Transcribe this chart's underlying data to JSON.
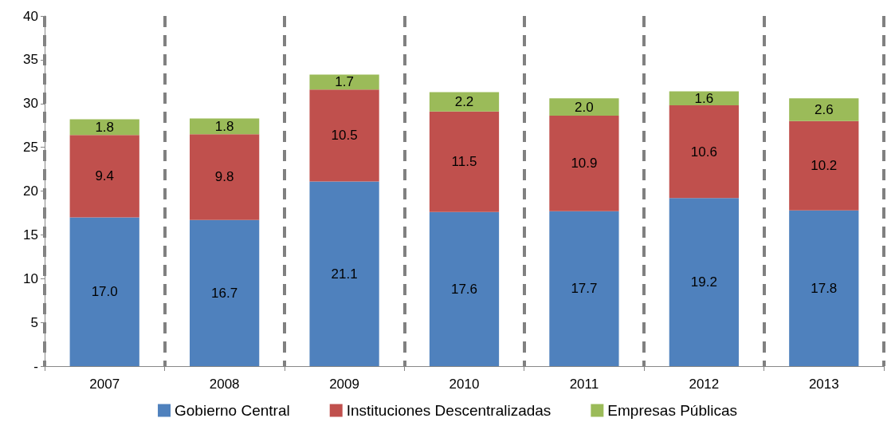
{
  "chart_data": {
    "type": "bar",
    "stacked": true,
    "categories": [
      "2007",
      "2008",
      "2009",
      "2010",
      "2011",
      "2012",
      "2013"
    ],
    "series": [
      {
        "name": "Gobierno Central",
        "color": "#4f81bd",
        "values": [
          17.0,
          16.7,
          21.1,
          17.6,
          17.7,
          19.2,
          17.8
        ],
        "value_labels": [
          "17.0",
          "16.7",
          "21.1",
          "17.6",
          "17.7",
          "19.2",
          "17.8"
        ]
      },
      {
        "name": "Instituciones Descentralizadas",
        "color": "#c0504d",
        "values": [
          9.4,
          9.8,
          10.5,
          11.5,
          10.9,
          10.6,
          10.2
        ],
        "value_labels": [
          "9.4",
          "9.8",
          "10.5",
          "11.5",
          "10.9",
          "10.6",
          "10.2"
        ]
      },
      {
        "name": "Empresas Públicas",
        "color": "#9bbb59",
        "values": [
          1.8,
          1.8,
          1.7,
          2.2,
          2.0,
          1.6,
          2.6
        ],
        "value_labels": [
          "1.8",
          "1.8",
          "1.7",
          "2.2",
          "2.0",
          "1.6",
          "2.6"
        ]
      }
    ],
    "ylim": [
      0,
      40
    ],
    "yticks": [
      {
        "value": 0,
        "label": "-"
      },
      5,
      10,
      15,
      20,
      25,
      30,
      35,
      40
    ],
    "grid": "x",
    "legend": "bottom"
  }
}
